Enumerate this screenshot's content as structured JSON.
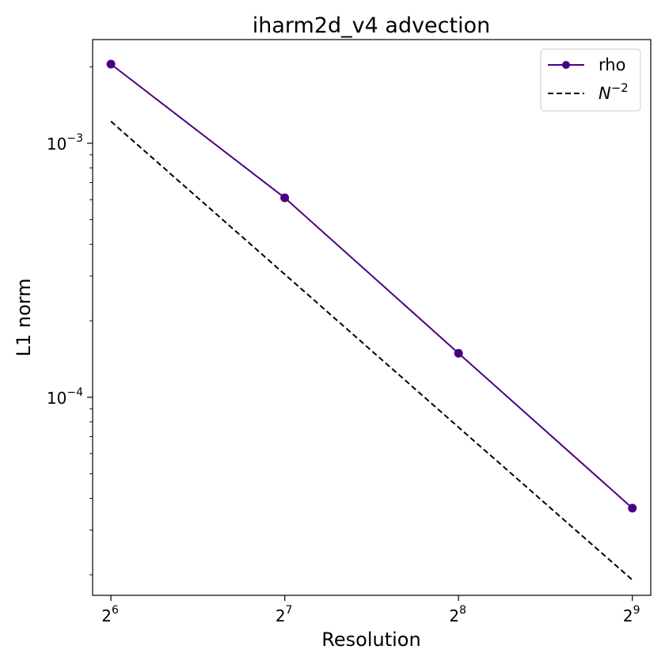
{
  "chart_data": {
    "type": "line",
    "title": "iharm2d_v4 advection",
    "xlabel": "Resolution",
    "ylabel": "L1 norm",
    "x": [
      64,
      128,
      256,
      512
    ],
    "xscale": "log2",
    "yscale": "log10",
    "xticks": [
      {
        "base": "2",
        "exp": "6",
        "value": 64
      },
      {
        "base": "2",
        "exp": "7",
        "value": 128
      },
      {
        "base": "2",
        "exp": "8",
        "value": 256
      },
      {
        "base": "2",
        "exp": "9",
        "value": 512
      }
    ],
    "yticks": [
      {
        "base": "10",
        "exp": "−4",
        "value": 0.0001
      },
      {
        "base": "10",
        "exp": "−3",
        "value": 0.001
      }
    ],
    "ylim": [
      1.66e-05,
      0.00256
    ],
    "xlim": [
      59.5,
      551
    ],
    "grid": false,
    "legend_position": "top-right",
    "series": [
      {
        "name": "rho",
        "values": [
          0.00205,
          0.00061,
          0.000149,
          3.66e-05
        ],
        "color": "#4b0082",
        "style": "solid",
        "marker": "circle"
      },
      {
        "name": "N^-2",
        "legend_prefix": "N",
        "legend_exp": "−2",
        "values": [
          0.00122,
          0.000305,
          7.62e-05,
          1.91e-05
        ],
        "color": "#000000",
        "style": "dashed",
        "marker": "none"
      }
    ]
  }
}
